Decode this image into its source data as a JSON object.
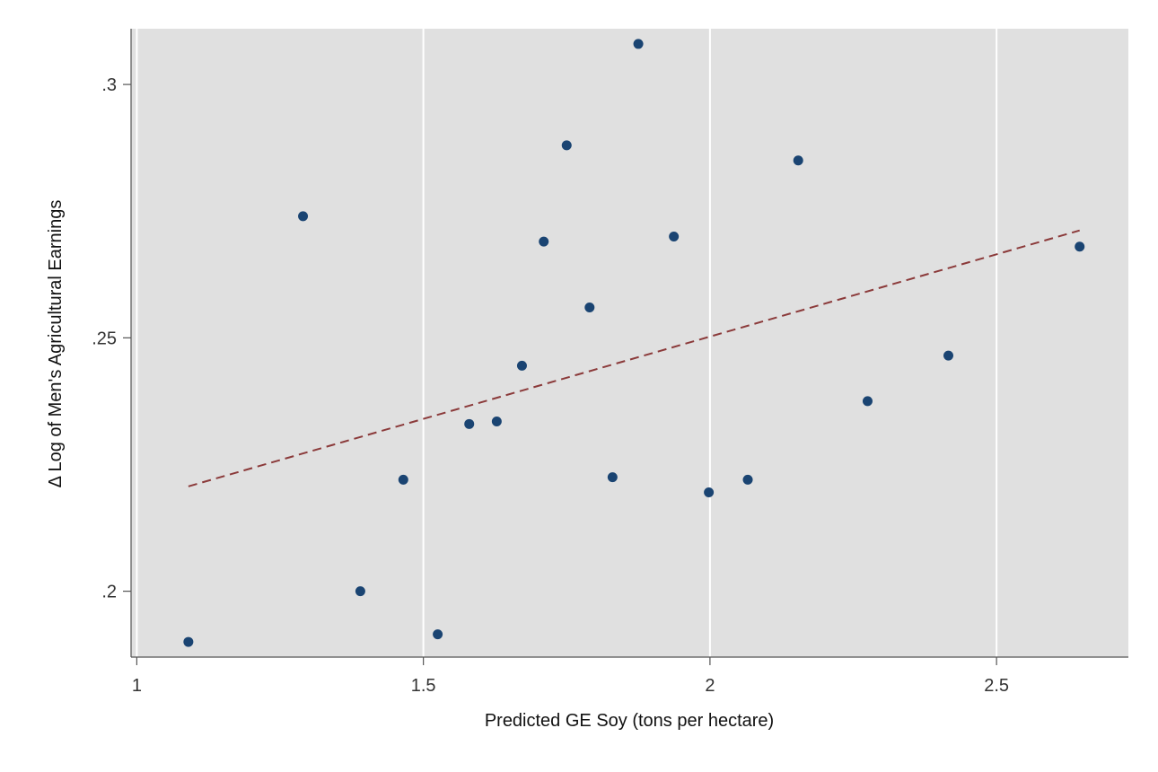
{
  "chart_data": {
    "type": "scatter",
    "title": "",
    "xlabel": "Predicted GE Soy (tons per hectare)",
    "ylabel": "Δ Log of Men's Agricultural Earnings",
    "xlim": [
      0.99,
      2.73
    ],
    "ylim": [
      0.187,
      0.311
    ],
    "x_ticks": [
      1,
      1.5,
      2,
      2.5
    ],
    "x_tick_labels": [
      "1",
      "1.5",
      "2",
      "2.5"
    ],
    "y_ticks": [
      0.2,
      0.25,
      0.3
    ],
    "y_tick_labels": [
      ".2",
      ".25",
      ".3"
    ],
    "grid": "vertical",
    "legend": "none",
    "colors": {
      "plot_background": "#e0e0e0",
      "grid": "#ffffff",
      "points": "#1a4472",
      "fit_line": "#8b3a3a"
    },
    "series": [
      {
        "type": "scatter",
        "x": [
          1.09,
          1.29,
          1.39,
          1.465,
          1.525,
          1.58,
          1.628,
          1.672,
          1.71,
          1.75,
          1.79,
          1.83,
          1.875,
          1.937,
          1.998,
          2.066,
          2.154,
          2.275,
          2.416,
          2.645
        ],
        "y": [
          0.19,
          0.274,
          0.2,
          0.222,
          0.1915,
          0.233,
          0.2335,
          0.2445,
          0.269,
          0.288,
          0.256,
          0.2225,
          0.308,
          0.27,
          0.2195,
          0.222,
          0.285,
          0.2375,
          0.2465,
          0.268
        ]
      },
      {
        "type": "line",
        "style": "dashed",
        "x": [
          1.09,
          2.645
        ],
        "y": [
          0.2207,
          0.2712
        ]
      }
    ]
  }
}
